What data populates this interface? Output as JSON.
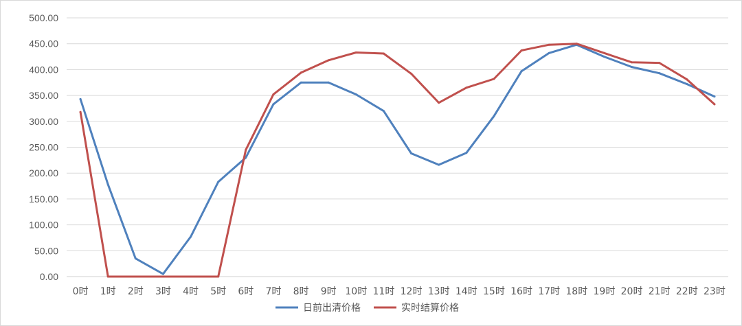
{
  "chart_data": {
    "type": "line",
    "title": "",
    "xlabel": "",
    "ylabel": "",
    "categories": [
      "0时",
      "1时",
      "2时",
      "3时",
      "4时",
      "5时",
      "6时",
      "7时",
      "8时",
      "9时",
      "10时",
      "11时",
      "12时",
      "13时",
      "14时",
      "15时",
      "16时",
      "17时",
      "18时",
      "19时",
      "20时",
      "21时",
      "22时",
      "23时"
    ],
    "ylim": [
      0,
      500
    ],
    "yticks": [
      "0.00",
      "50.00",
      "100.00",
      "150.00",
      "200.00",
      "250.00",
      "300.00",
      "350.00",
      "400.00",
      "450.00",
      "500.00"
    ],
    "grid": "horizontal",
    "legend_position": "bottom",
    "series": [
      {
        "name": "日前出清价格",
        "color": "#4F81BD",
        "values": [
          343,
          178,
          35,
          5,
          77,
          183,
          230,
          333,
          375,
          375,
          352,
          320,
          238,
          216,
          239,
          310,
          397,
          432,
          448,
          425,
          405,
          393,
          372,
          348
        ]
      },
      {
        "name": "实时结算价格",
        "color": "#C0504D",
        "values": [
          318,
          0,
          0,
          0,
          0,
          0,
          245,
          352,
          394,
          418,
          433,
          431,
          392,
          336,
          365,
          382,
          437,
          448,
          450,
          432,
          414,
          413,
          381,
          333
        ]
      }
    ]
  }
}
